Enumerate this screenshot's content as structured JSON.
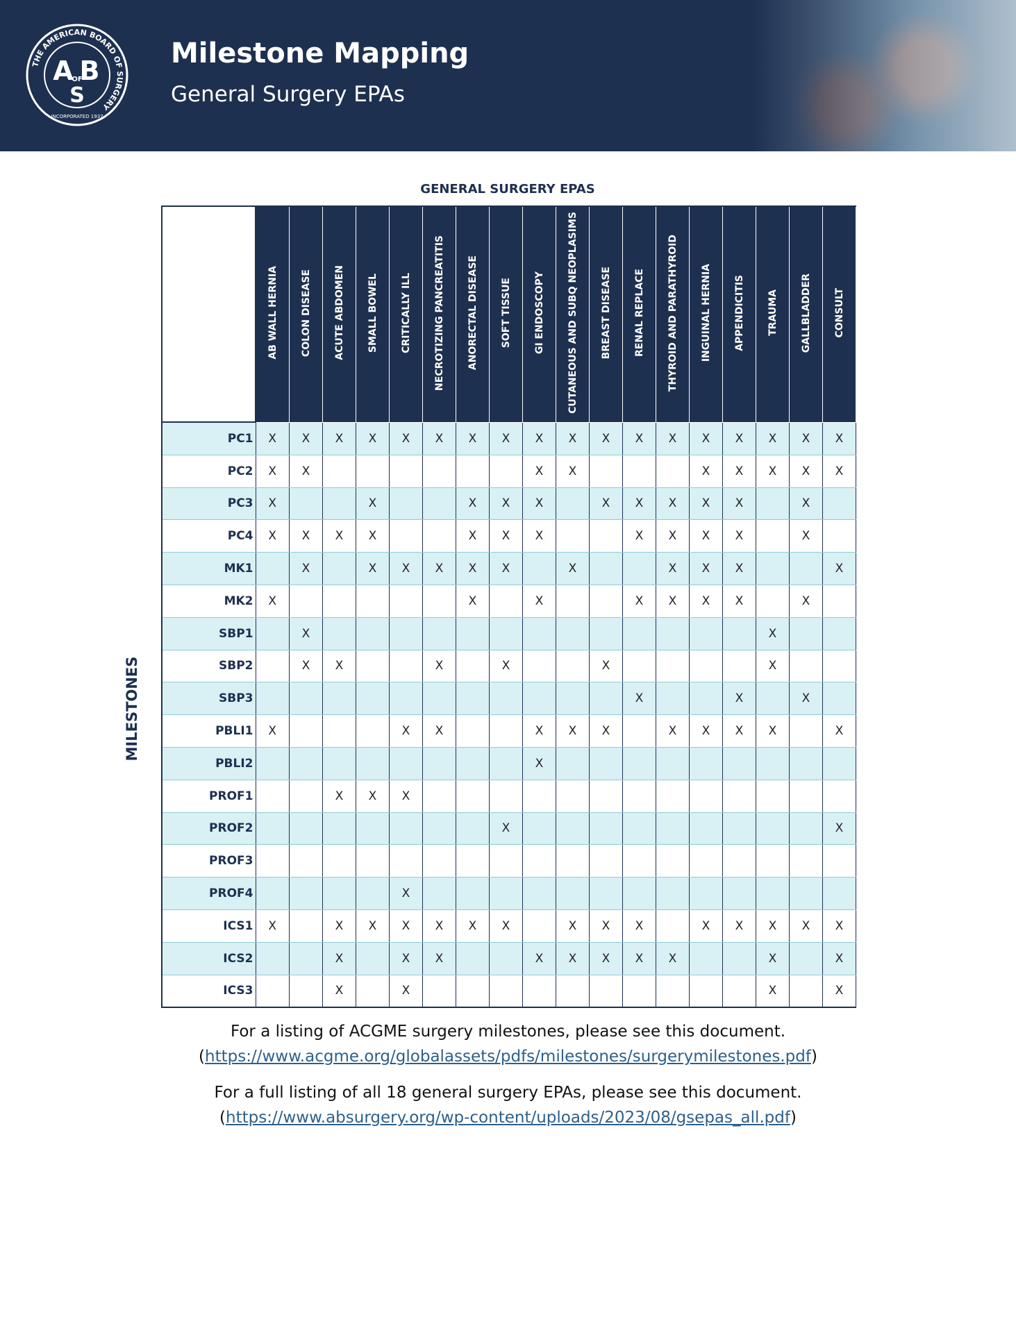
{
  "header": {
    "title": "Milestone Mapping",
    "subtitle": "General Surgery EPAs",
    "logo": {
      "ring_text": "THE AMERICAN BOARD OF SURGERY",
      "incorporated": "INCORPORATED 1937",
      "letter_a": "A",
      "of": "OF",
      "letter_b": "B",
      "letter_s": "S"
    }
  },
  "table": {
    "title": "GENERAL SURGERY EPAS",
    "row_axis_label": "MILESTONES",
    "columns": [
      "AB WALL HERNIA",
      "COLON DISEASE",
      "ACUTE ABDOMEN",
      "SMALL BOWEL",
      "CRITICALLY ILL",
      "NECROTIZING PANCREATITIS",
      "ANORECTAL DISEASE",
      "SOFT TISSUE",
      "GI ENDOSCOPY",
      "CUTANEOUS AND SUBQ NEOPLASIMS",
      "BREAST DISEASE",
      "RENAL REPLACE",
      "THYROID AND PARATHYROID",
      "INGUINAL HERNIA",
      "APPENDICITIS",
      "TRAUMA",
      "GALLBLADDER",
      "CONSULT"
    ],
    "rows": [
      {
        "label": "PC1",
        "cells": [
          "X",
          "X",
          "X",
          "X",
          "X",
          "X",
          "X",
          "X",
          "X",
          "X",
          "X",
          "X",
          "X",
          "X",
          "X",
          "X",
          "X",
          "X"
        ]
      },
      {
        "label": "PC2",
        "cells": [
          "X",
          "X",
          null,
          null,
          null,
          null,
          null,
          null,
          "X",
          "X",
          null,
          null,
          null,
          "X",
          "X",
          "X",
          "X",
          "X"
        ]
      },
      {
        "label": "PC3",
        "cells": [
          "X",
          null,
          null,
          "X",
          null,
          null,
          "X",
          "X",
          "X",
          null,
          "X",
          "X",
          "X",
          "X",
          "X",
          null,
          "X",
          null
        ]
      },
      {
        "label": "PC4",
        "cells": [
          "X",
          "X",
          "X",
          "X",
          null,
          null,
          "X",
          "X",
          "X",
          null,
          null,
          "X",
          "X",
          "X",
          "X",
          null,
          "X",
          null
        ]
      },
      {
        "label": "MK1",
        "cells": [
          null,
          "X",
          null,
          "X",
          "X",
          "X",
          "X",
          "X",
          null,
          "X",
          null,
          null,
          "X",
          "X",
          "X",
          null,
          null,
          "X"
        ]
      },
      {
        "label": "MK2",
        "cells": [
          "X",
          null,
          null,
          null,
          null,
          null,
          "X",
          null,
          "X",
          null,
          null,
          "X",
          "X",
          "X",
          "X",
          null,
          "X",
          null
        ]
      },
      {
        "label": "SBP1",
        "cells": [
          null,
          "X",
          null,
          null,
          null,
          null,
          null,
          null,
          null,
          null,
          null,
          null,
          null,
          null,
          null,
          "X",
          null,
          null
        ]
      },
      {
        "label": "SBP2",
        "cells": [
          null,
          "X",
          "X",
          null,
          null,
          "X",
          null,
          "X",
          null,
          null,
          "X",
          null,
          null,
          null,
          null,
          "X",
          null,
          null
        ]
      },
      {
        "label": "SBP3",
        "cells": [
          null,
          null,
          null,
          null,
          null,
          null,
          null,
          null,
          null,
          null,
          null,
          "X",
          null,
          null,
          "X",
          null,
          "X",
          null
        ]
      },
      {
        "label": "PBLI1",
        "cells": [
          "X",
          null,
          null,
          null,
          "X",
          "X",
          null,
          null,
          "X",
          "X",
          "X",
          null,
          "X",
          "X",
          "X",
          "X",
          null,
          "X"
        ]
      },
      {
        "label": "PBLI2",
        "cells": [
          null,
          null,
          null,
          null,
          null,
          null,
          null,
          null,
          "X",
          null,
          null,
          null,
          null,
          null,
          null,
          null,
          null,
          null
        ]
      },
      {
        "label": "PROF1",
        "cells": [
          null,
          null,
          "X",
          "X",
          "X",
          null,
          null,
          null,
          null,
          null,
          null,
          null,
          null,
          null,
          null,
          null,
          null,
          null
        ]
      },
      {
        "label": "PROF2",
        "cells": [
          null,
          null,
          null,
          null,
          null,
          null,
          null,
          "X",
          null,
          null,
          null,
          null,
          null,
          null,
          null,
          null,
          null,
          "X"
        ]
      },
      {
        "label": "PROF3",
        "cells": [
          null,
          null,
          null,
          null,
          null,
          null,
          null,
          null,
          null,
          null,
          null,
          null,
          null,
          null,
          null,
          null,
          null,
          null
        ]
      },
      {
        "label": "PROF4",
        "cells": [
          null,
          null,
          null,
          null,
          "X",
          null,
          null,
          null,
          null,
          null,
          null,
          null,
          null,
          null,
          null,
          null,
          null,
          null
        ]
      },
      {
        "label": "ICS1",
        "cells": [
          "X",
          null,
          "X",
          "X",
          "X",
          "X",
          "X",
          "X",
          null,
          "X",
          "X",
          "X",
          null,
          "X",
          "X",
          "X",
          "X",
          "X"
        ]
      },
      {
        "label": "ICS2",
        "cells": [
          null,
          null,
          "X",
          null,
          "X",
          "X",
          null,
          null,
          "X",
          "X",
          "X",
          "X",
          "X",
          null,
          null,
          "X",
          null,
          "X"
        ]
      },
      {
        "label": "ICS3",
        "cells": [
          null,
          null,
          "X",
          null,
          "X",
          null,
          null,
          null,
          null,
          null,
          null,
          null,
          null,
          null,
          null,
          "X",
          null,
          "X"
        ]
      }
    ]
  },
  "notes": [
    {
      "text": "For a listing of ACGME surgery milestones, please see this document.",
      "open": "(",
      "url": "https://www.acgme.org/globalassets/pdfs/milestones/surgerymilestones.pdf",
      "close": ")"
    },
    {
      "text": "For a full listing of all 18 general surgery EPAs, please see this document.",
      "open": "(",
      "url": "https://www.absurgery.org/wp-content/uploads/2023/08/gsepas_all.pdf",
      "close": ")"
    }
  ]
}
